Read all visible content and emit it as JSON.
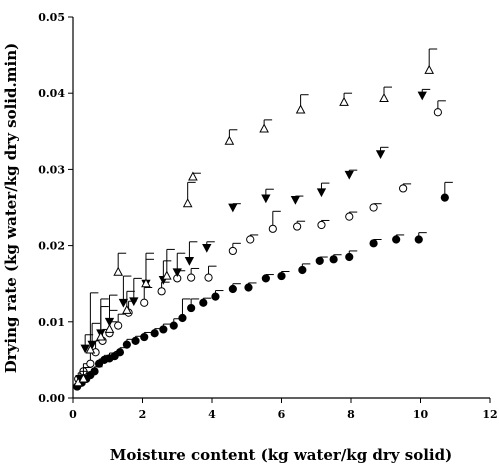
{
  "chart_data": {
    "type": "scatter",
    "title": "",
    "xlabel": "Moisture content (kg water/kg dry solid)",
    "ylabel": "Drying rate (kg water/kg dry solid.min)",
    "xlim": [
      0,
      12
    ],
    "ylim": [
      0,
      0.05
    ],
    "xticks": [
      "0",
      "2",
      "4",
      "6",
      "8",
      "10",
      "12"
    ],
    "yticks": [
      "0.00",
      "0.01",
      "0.02",
      "0.03",
      "0.04",
      "0.05"
    ],
    "grid": false,
    "legend": "none",
    "series": [
      {
        "marker": "filled-circle",
        "color": "#000000",
        "points": [
          [
            0.12,
            0.0015,
            0.0003
          ],
          [
            0.25,
            0.002,
            0.0004
          ],
          [
            0.38,
            0.0025,
            0.0005
          ],
          [
            0.5,
            0.003,
            0.0005
          ],
          [
            0.62,
            0.0035,
            0.0006
          ],
          [
            0.75,
            0.0045,
            0.0006
          ],
          [
            0.9,
            0.005,
            0.0006
          ],
          [
            1.05,
            0.0052,
            0.0007
          ],
          [
            1.2,
            0.0055,
            0.0006
          ],
          [
            1.35,
            0.006,
            0.0006
          ],
          [
            1.55,
            0.007,
            0.0007
          ],
          [
            1.8,
            0.0075,
            0.0006
          ],
          [
            2.05,
            0.008,
            0.0006
          ],
          [
            2.35,
            0.0085,
            0.0006
          ],
          [
            2.6,
            0.009,
            0.0007
          ],
          [
            2.9,
            0.0095,
            0.0009
          ],
          [
            3.15,
            0.0105,
            0.0025
          ],
          [
            3.4,
            0.0118,
            0.0012
          ],
          [
            3.75,
            0.0125,
            0.0006
          ],
          [
            4.1,
            0.0133,
            0.0008
          ],
          [
            4.6,
            0.0143,
            0.0007
          ],
          [
            5.05,
            0.0145,
            0.0006
          ],
          [
            5.55,
            0.0157,
            0.0005
          ],
          [
            6.0,
            0.016,
            0.0006
          ],
          [
            6.6,
            0.0168,
            0.0008
          ],
          [
            7.1,
            0.018,
            0.0005
          ],
          [
            7.5,
            0.0182,
            0.0006
          ],
          [
            7.95,
            0.0185,
            0.0008
          ],
          [
            8.65,
            0.0203,
            0.0005
          ],
          [
            9.3,
            0.0208,
            0.0006
          ],
          [
            9.95,
            0.0208,
            0.0009
          ],
          [
            10.7,
            0.0263,
            0.002
          ]
        ]
      },
      {
        "marker": "open-circle",
        "color": "#000000",
        "points": [
          [
            0.15,
            0.0025,
            0.0008
          ],
          [
            0.3,
            0.0035,
            0.001
          ],
          [
            0.5,
            0.0045,
            0.0015
          ],
          [
            0.65,
            0.006,
            0.0015
          ],
          [
            0.85,
            0.0075,
            0.0015
          ],
          [
            1.05,
            0.0085,
            0.0015
          ],
          [
            1.3,
            0.0095,
            0.0015
          ],
          [
            1.6,
            0.0112,
            0.0015
          ],
          [
            2.05,
            0.0125,
            0.002
          ],
          [
            2.55,
            0.014,
            0.0012
          ],
          [
            3.0,
            0.0157,
            0.001
          ],
          [
            3.4,
            0.0158,
            0.0012
          ],
          [
            3.9,
            0.0158,
            0.0015
          ],
          [
            4.6,
            0.0193,
            0.001
          ],
          [
            5.1,
            0.0208,
            0.0006
          ],
          [
            5.75,
            0.0222,
            0.0023
          ],
          [
            6.45,
            0.0225,
            0.0007
          ],
          [
            7.15,
            0.0227,
            0.0006
          ],
          [
            7.95,
            0.0238,
            0.0006
          ],
          [
            8.65,
            0.025,
            0.0005
          ],
          [
            9.5,
            0.0275,
            0.0006
          ],
          [
            10.5,
            0.0375,
            0.0015
          ]
        ]
      },
      {
        "marker": "filled-triangle-down",
        "color": "#000000",
        "points": [
          [
            0.2,
            0.0025,
            0.001
          ],
          [
            0.35,
            0.0065,
            0.0018
          ],
          [
            0.55,
            0.007,
            0.0028
          ],
          [
            0.8,
            0.0085,
            0.0035
          ],
          [
            1.05,
            0.01,
            0.0035
          ],
          [
            1.45,
            0.0125,
            0.0035
          ],
          [
            1.75,
            0.0127,
            0.003
          ],
          [
            2.1,
            0.015,
            0.0032
          ],
          [
            2.6,
            0.0155,
            0.0025
          ],
          [
            3.0,
            0.0165,
            0.0025
          ],
          [
            3.35,
            0.018,
            0.0025
          ],
          [
            3.85,
            0.0197,
            0.0008
          ],
          [
            4.6,
            0.025,
            0.0005
          ],
          [
            5.55,
            0.0262,
            0.0012
          ],
          [
            6.4,
            0.026,
            0.0005
          ],
          [
            7.15,
            0.027,
            0.0012
          ],
          [
            7.95,
            0.0293,
            0.0006
          ],
          [
            8.85,
            0.032,
            0.0009
          ],
          [
            10.05,
            0.0397,
            0.0008
          ]
        ]
      },
      {
        "marker": "open-triangle-up",
        "color": "#000000",
        "points": [
          [
            0.15,
            0.002,
            0.0008
          ],
          [
            0.3,
            0.0025,
            0.0015
          ],
          [
            0.5,
            0.0063,
            0.0075
          ],
          [
            0.8,
            0.008,
            0.005
          ],
          [
            1.05,
            0.009,
            0.0025
          ],
          [
            1.3,
            0.0165,
            0.0025
          ],
          [
            1.55,
            0.0115,
            0.0025
          ],
          [
            2.1,
            0.015,
            0.004
          ],
          [
            2.7,
            0.016,
            0.0035
          ],
          [
            3.3,
            0.0255,
            0.0028
          ],
          [
            3.45,
            0.029,
            0.0005
          ],
          [
            4.5,
            0.0337,
            0.0015
          ],
          [
            5.5,
            0.0353,
            0.0012
          ],
          [
            6.55,
            0.0378,
            0.002
          ],
          [
            7.8,
            0.0388,
            0.0012
          ],
          [
            8.95,
            0.0393,
            0.0015
          ],
          [
            10.25,
            0.043,
            0.0028
          ]
        ]
      }
    ]
  }
}
